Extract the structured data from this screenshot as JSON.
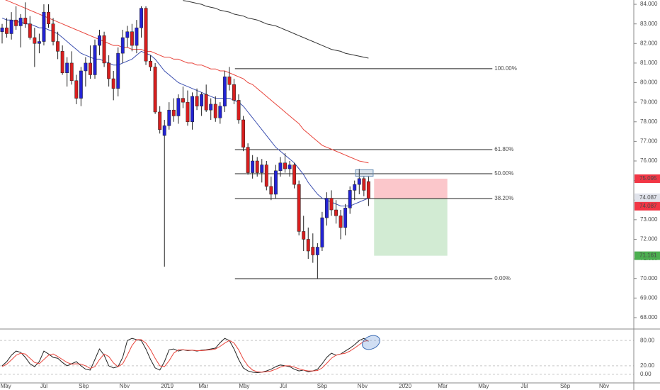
{
  "chart_data": {
    "type": "candlestick",
    "xlim": [
      -0.46,
      136.2
    ],
    "ylim": [
      67.49,
      84.22
    ],
    "xticks": [
      {
        "value": 0.8,
        "label": "May"
      },
      {
        "value": 9,
        "label": "Jul"
      },
      {
        "value": 17.6,
        "label": "Sep"
      },
      {
        "value": 26.4,
        "label": "Nov"
      },
      {
        "value": 35.6,
        "label": "2019"
      },
      {
        "value": 43.4,
        "label": "Mar"
      },
      {
        "value": 52.2,
        "label": "May"
      },
      {
        "value": 60.6,
        "label": "Jul"
      },
      {
        "value": 69,
        "label": "Sep"
      },
      {
        "value": 77.7,
        "label": "Nov"
      },
      {
        "value": 86.9,
        "label": "2020"
      },
      {
        "value": 95,
        "label": "Mar"
      },
      {
        "value": 103.8,
        "label": "May"
      },
      {
        "value": 112.6,
        "label": "Jul"
      },
      {
        "value": 121.4,
        "label": "Sep"
      },
      {
        "value": 129.8,
        "label": "Nov"
      }
    ],
    "yticks": [
      {
        "value": 84,
        "label": "84.000"
      },
      {
        "value": 83,
        "label": "83.000"
      },
      {
        "value": 82,
        "label": "82.000"
      },
      {
        "value": 81,
        "label": "81.000"
      },
      {
        "value": 80,
        "label": "80.000"
      },
      {
        "value": 79,
        "label": "79.000"
      },
      {
        "value": 78,
        "label": "78.000"
      },
      {
        "value": 77,
        "label": "77.000"
      },
      {
        "value": 76,
        "label": "76.000"
      },
      {
        "value": 75,
        "label": "75.000"
      },
      {
        "value": 74,
        "label": "74.000"
      },
      {
        "value": 73,
        "label": "73.000"
      },
      {
        "value": 72,
        "label": "72.000"
      },
      {
        "value": 71,
        "label": "71.000"
      },
      {
        "value": 70,
        "label": "70.000"
      },
      {
        "value": 69,
        "label": "69.000"
      },
      {
        "value": 68,
        "label": "68.000"
      }
    ],
    "up_color": "#2323d4",
    "down_color": "#d81e1e",
    "candles": {
      "open": [
        82.6,
        82.8,
        82.5,
        83.2,
        82.9,
        83.3,
        83.0,
        82.3,
        82.0,
        82.1,
        83.6,
        83.0,
        82.1,
        81.6,
        80.5,
        81.0,
        80.1,
        79.2,
        80.6,
        81.0,
        80.4,
        81.9,
        82.4,
        81.0,
        80.2,
        79.7,
        81.5,
        82.3,
        82.6,
        81.9,
        82.8,
        83.8,
        81.1,
        80.8,
        78.5,
        77.3,
        77.8,
        78.6,
        78.3,
        79.2,
        79.0,
        78.0,
        79.3,
        78.8,
        79.4,
        78.6,
        78.9,
        78.2,
        78.8,
        80.3,
        79.9,
        79.1,
        78.1,
        76.7,
        75.4,
        76.0,
        75.4,
        75.8,
        74.7,
        74.3,
        75.5,
        75.9,
        75.6,
        75.8,
        74.8,
        72.4,
        72.0,
        71.6,
        71.2,
        71.6,
        73.1,
        74.1,
        73.5,
        73.2,
        72.6,
        73.6,
        74.5,
        74.8,
        75.1,
        74.95
      ],
      "high": [
        83.0,
        83.3,
        83.6,
        83.9,
        83.5,
        84.1,
        83.4,
        82.8,
        82.5,
        84.0,
        84.0,
        83.3,
        82.6,
        81.9,
        81.3,
        81.6,
        80.4,
        80.8,
        81.3,
        81.9,
        82.2,
        82.7,
        82.6,
        81.4,
        80.6,
        81.8,
        82.7,
        82.9,
        83.0,
        83.2,
        83.9,
        83.9,
        81.4,
        81.0,
        78.8,
        78.1,
        79.0,
        79.2,
        79.4,
        79.8,
        79.6,
        79.5,
        79.7,
        79.5,
        79.9,
        79.2,
        79.3,
        79.0,
        80.6,
        80.8,
        80.2,
        79.4,
        78.3,
        76.9,
        76.3,
        76.2,
        76.1,
        76.0,
        75.2,
        75.8,
        76.2,
        76.4,
        76.0,
        75.9,
        75.0,
        73.2,
        72.6,
        72.3,
        71.8,
        73.4,
        74.4,
        74.5,
        74.0,
        73.5,
        73.8,
        74.7,
        75.0,
        75.6,
        75.2,
        75.2
      ],
      "low": [
        82.0,
        82.3,
        82.2,
        82.7,
        81.8,
        82.8,
        82.2,
        80.8,
        81.5,
        81.9,
        82.8,
        81.9,
        81.2,
        80.4,
        79.8,
        79.9,
        78.9,
        78.8,
        79.8,
        80.2,
        80.2,
        81.4,
        80.8,
        79.8,
        79.1,
        79.3,
        81.0,
        81.8,
        81.6,
        81.5,
        82.3,
        80.9,
        80.6,
        78.4,
        77.4,
        70.6,
        77.6,
        78.0,
        77.9,
        78.7,
        77.8,
        77.6,
        78.6,
        78.3,
        78.5,
        78.1,
        78.0,
        77.9,
        78.5,
        79.6,
        78.9,
        77.9,
        76.5,
        75.3,
        75.1,
        75.2,
        74.9,
        74.5,
        74.0,
        74.1,
        75.2,
        75.4,
        75.2,
        74.6,
        72.2,
        71.4,
        71.0,
        70.8,
        70.0,
        71.4,
        72.7,
        73.2,
        72.8,
        72.0,
        72.2,
        73.3,
        74.0,
        74.3,
        74.2,
        73.7
      ],
      "close": [
        82.8,
        82.5,
        83.2,
        82.9,
        83.3,
        83.0,
        82.3,
        82.0,
        82.1,
        83.6,
        83.0,
        82.1,
        81.6,
        80.5,
        81.0,
        80.1,
        79.2,
        80.6,
        81.0,
        80.4,
        81.9,
        82.4,
        81.0,
        80.2,
        79.7,
        81.5,
        82.3,
        82.6,
        81.9,
        82.8,
        83.8,
        81.1,
        80.8,
        78.5,
        77.6,
        77.8,
        78.6,
        78.3,
        79.2,
        79.0,
        78.0,
        79.3,
        78.8,
        79.4,
        78.6,
        78.9,
        78.2,
        78.8,
        80.3,
        79.9,
        79.1,
        78.1,
        76.7,
        75.4,
        76.0,
        75.4,
        75.8,
        74.7,
        74.3,
        75.5,
        75.9,
        75.6,
        75.8,
        74.8,
        72.4,
        72.0,
        71.4,
        71.2,
        71.6,
        73.1,
        74.1,
        73.5,
        73.2,
        72.6,
        73.6,
        74.5,
        74.8,
        75.1,
        74.5,
        74.087
      ]
    },
    "series": [
      {
        "color": "#3b4fb0",
        "values": [
          83.3,
          83.2,
          83.2,
          83.1,
          83.1,
          83.0,
          83.0,
          82.9,
          82.8,
          82.8,
          82.7,
          82.6,
          82.5,
          82.3,
          82.1,
          81.9,
          81.7,
          81.5,
          81.4,
          81.3,
          81.2,
          81.2,
          81.1,
          81.0,
          80.9,
          80.9,
          81.0,
          81.1,
          81.2,
          81.4,
          81.6,
          81.5,
          81.4,
          81.2,
          80.9,
          80.6,
          80.4,
          80.2,
          80.0,
          79.9,
          79.8,
          79.7,
          79.6,
          79.5,
          79.4,
          79.3,
          79.2,
          79.2,
          79.2,
          79.2,
          79.1,
          79.0,
          78.8,
          78.5,
          78.2,
          77.9,
          77.6,
          77.3,
          77.0,
          76.7,
          76.5,
          76.3,
          76.1,
          75.9,
          75.6,
          75.3,
          74.9,
          74.6,
          74.3,
          74.1,
          74.0,
          73.9,
          73.8,
          73.7,
          73.7,
          73.7,
          73.8,
          73.9,
          74.0,
          74.1
        ]
      },
      {
        "color": "#e8453c",
        "values": [
          84.3,
          84.2,
          84.1,
          84.0,
          83.9,
          83.8,
          83.7,
          83.6,
          83.5,
          83.4,
          83.3,
          83.2,
          83.1,
          83.0,
          82.9,
          82.8,
          82.7,
          82.6,
          82.5,
          82.4,
          82.3,
          82.2,
          82.1,
          82.0,
          81.9,
          81.9,
          81.8,
          81.8,
          81.7,
          81.7,
          81.7,
          81.6,
          81.6,
          81.5,
          81.4,
          81.3,
          81.3,
          81.2,
          81.2,
          81.1,
          81.0,
          81.0,
          80.9,
          80.9,
          80.8,
          80.7,
          80.7,
          80.6,
          80.6,
          80.5,
          80.4,
          80.3,
          80.2,
          80.0,
          79.9,
          79.7,
          79.5,
          79.3,
          79.1,
          78.9,
          78.7,
          78.5,
          78.3,
          78.1,
          77.9,
          77.6,
          77.4,
          77.2,
          77.0,
          76.8,
          76.7,
          76.6,
          76.5,
          76.4,
          76.3,
          76.2,
          76.1,
          76.0,
          75.95,
          75.9
        ]
      },
      {
        "color": "#333333",
        "values": [
          null,
          null,
          null,
          null,
          null,
          null,
          null,
          null,
          null,
          null,
          null,
          null,
          null,
          null,
          null,
          null,
          null,
          null,
          null,
          null,
          null,
          null,
          null,
          null,
          null,
          null,
          null,
          null,
          null,
          null,
          null,
          null,
          null,
          null,
          null,
          null,
          null,
          null,
          null,
          84.2,
          84.15,
          84.1,
          84.05,
          84.0,
          83.9,
          83.85,
          83.8,
          83.7,
          83.65,
          83.6,
          83.5,
          83.45,
          83.4,
          83.3,
          83.25,
          83.2,
          83.1,
          83.0,
          82.95,
          82.9,
          82.8,
          82.7,
          82.6,
          82.5,
          82.4,
          82.3,
          82.2,
          82.1,
          82.0,
          81.9,
          81.8,
          81.7,
          81.65,
          81.6,
          81.5,
          81.45,
          81.4,
          81.35,
          81.3,
          81.25
        ]
      }
    ],
    "fib": {
      "x": [
        50.2,
        105.7
      ],
      "color": "#222222",
      "levels": [
        {
          "value": 80.71,
          "label": "100.00%"
        },
        {
          "value": 76.58,
          "label": "61.80%"
        },
        {
          "value": 75.35,
          "label": "50.00%"
        },
        {
          "value": 74.08,
          "label": "38.20%"
        },
        {
          "value": 69.99,
          "label": "0.00%"
        }
      ]
    },
    "highlight": {
      "x": [
        76.2,
        80
      ],
      "y": [
        75.22,
        75.55
      ],
      "color": "#6a8fb5"
    },
    "position": {
      "x": [
        80.2,
        96
      ],
      "stop": 75.095,
      "entry": 74.087,
      "target": 71.161,
      "stop_color": "#f23645",
      "target_color": "#4caf50"
    },
    "oscillator": {
      "ylim": [
        -20.4,
        103.8
      ],
      "yticks": [
        {
          "value": 80,
          "label": "80.00"
        },
        {
          "value": 20,
          "label": "20.00"
        },
        {
          "value": 0,
          "label": "0.00"
        }
      ],
      "series": [
        {
          "color": "#222222",
          "values": [
            20,
            30,
            45,
            55,
            52,
            40,
            25,
            18,
            30,
            55,
            48,
            40,
            38,
            28,
            20,
            25,
            30,
            20,
            12,
            10,
            35,
            60,
            45,
            20,
            15,
            18,
            40,
            80,
            85,
            82,
            80,
            60,
            35,
            15,
            10,
            30,
            58,
            60,
            55,
            58,
            56,
            57,
            55,
            57,
            58,
            60,
            62,
            75,
            85,
            80,
            60,
            35,
            15,
            8,
            5,
            4,
            5,
            8,
            12,
            18,
            22,
            20,
            18,
            12,
            8,
            10,
            6,
            8,
            12,
            25,
            40,
            50,
            45,
            48,
            55,
            62,
            70,
            80,
            85,
            78
          ]
        },
        {
          "color": "#e8453c",
          "values": [
            18,
            24,
            34,
            45,
            50,
            48,
            38,
            28,
            25,
            35,
            45,
            48,
            42,
            35,
            28,
            24,
            25,
            24,
            20,
            14,
            18,
            35,
            48,
            42,
            27,
            18,
            25,
            45,
            68,
            82,
            82,
            74,
            58,
            38,
            20,
            18,
            32,
            50,
            58,
            58,
            57,
            57,
            56,
            56,
            57,
            58,
            60,
            66,
            74,
            80,
            74,
            58,
            36,
            20,
            10,
            6,
            5,
            6,
            8,
            12,
            17,
            20,
            20,
            17,
            13,
            10,
            8,
            8,
            9,
            15,
            26,
            38,
            45,
            48,
            50,
            55,
            62,
            70,
            78,
            80
          ]
        }
      ]
    }
  }
}
